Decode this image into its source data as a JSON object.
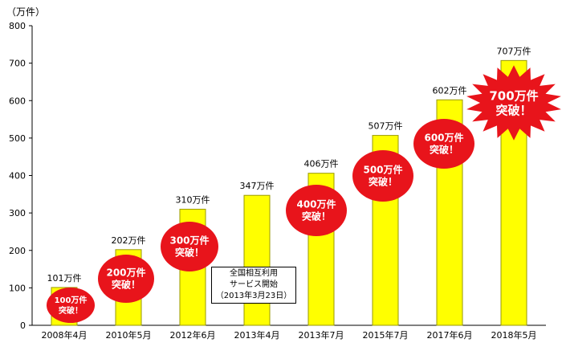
{
  "chart_data": {
    "type": "bar",
    "unit_label": "（万件）",
    "categories": [
      "2008年4月",
      "2010年5月",
      "2012年6月",
      "2013年4月",
      "2013年7月",
      "2015年7月",
      "2017年6月",
      "2018年5月"
    ],
    "values": [
      101,
      202,
      310,
      347,
      406,
      507,
      602,
      707
    ],
    "value_labels": [
      "101万件",
      "202万件",
      "310万件",
      "347万件",
      "406万件",
      "507万件",
      "602万件",
      "707万件"
    ],
    "ylim": [
      0,
      800
    ],
    "yticks": [
      0,
      100,
      200,
      300,
      400,
      500,
      600,
      700,
      800
    ],
    "grid": false,
    "colors": {
      "bar": "#ffff00",
      "bar_border": "#9a9a00",
      "badge": "#e8141b",
      "badge_text": "#ffffff"
    },
    "annotations": [
      {
        "category": "2008年4月",
        "lines": [
          "100万件",
          "突破！"
        ],
        "shape": "ellipse"
      },
      {
        "category": "2010年5月",
        "lines": [
          "200万件",
          "突破！"
        ],
        "shape": "ellipse"
      },
      {
        "category": "2012年6月",
        "lines": [
          "300万件",
          "突破！"
        ],
        "shape": "ellipse"
      },
      {
        "category": "2013年7月",
        "lines": [
          "400万件",
          "突破！"
        ],
        "shape": "ellipse"
      },
      {
        "category": "2015年7月",
        "lines": [
          "500万件",
          "突破！"
        ],
        "shape": "ellipse"
      },
      {
        "category": "2017年6月",
        "lines": [
          "600万件",
          "突破！"
        ],
        "shape": "ellipse"
      },
      {
        "category": "2018年5月",
        "lines": [
          "700万件",
          "突破！"
        ],
        "shape": "starburst"
      }
    ],
    "note_box": {
      "category": "2013年4月",
      "lines": [
        "全国相互利用",
        "サービス開始",
        "（2013年3月23日）"
      ]
    }
  }
}
